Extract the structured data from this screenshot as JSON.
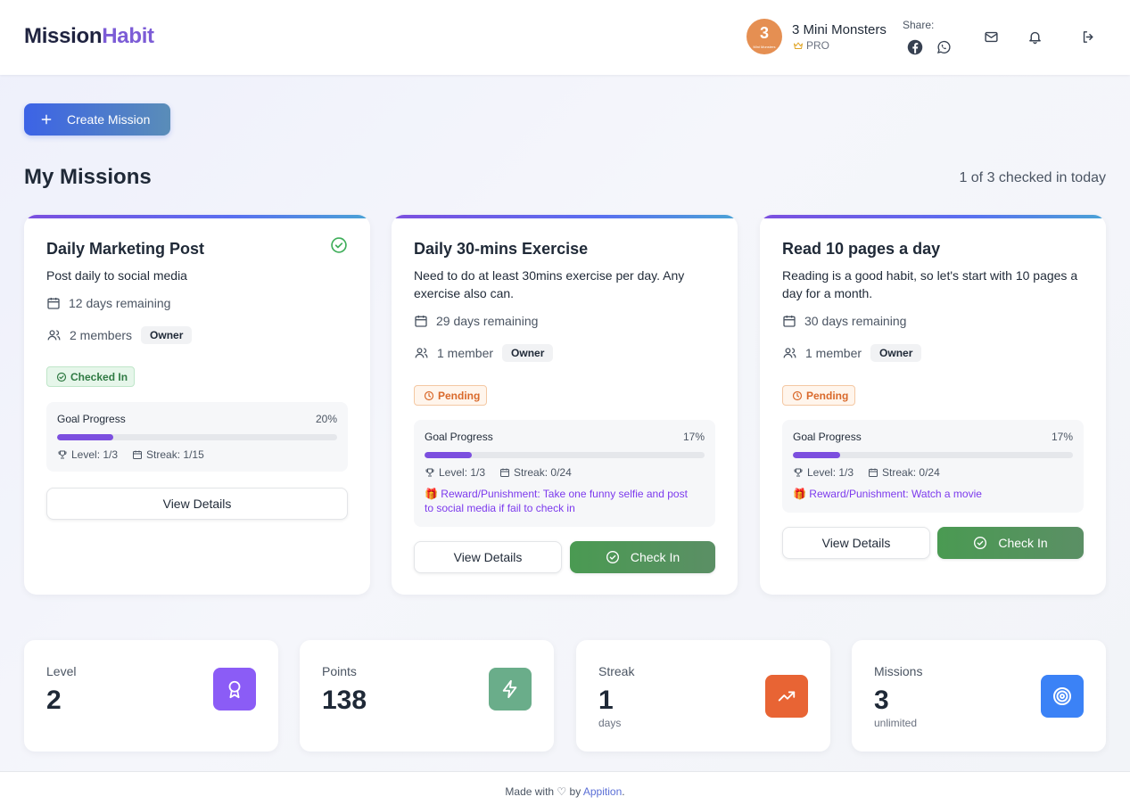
{
  "app": {
    "logo_part1": "Mission",
    "logo_part2": "Habit"
  },
  "header": {
    "team_avatar_number": "3",
    "team_avatar_caption": "Mini Monsters",
    "team_name": "3 Mini Monsters",
    "plan": "PRO",
    "share_label": "Share:"
  },
  "toolbar": {
    "create_label": "Create Mission"
  },
  "page": {
    "title": "My Missions",
    "checked_summary": "1 of 3 checked in today"
  },
  "missions": [
    {
      "title": "Daily Marketing Post",
      "description": "Post daily to social media",
      "days_remaining": "12 days remaining",
      "members": "2 members",
      "role": "Owner",
      "status": "Checked In",
      "progress_label": "Goal Progress",
      "progress_percent_text": "20%",
      "progress_value": 0.2,
      "level": "Level: 1/3",
      "streak": "Streak: 1/15",
      "reward": "",
      "details_label": "View Details",
      "checkin_label": ""
    },
    {
      "title": "Daily 30-mins Exercise",
      "description": "Need to do at least 30mins exercise per day. Any exercise also can.",
      "days_remaining": "29 days remaining",
      "members": "1 member",
      "role": "Owner",
      "status": "Pending",
      "progress_label": "Goal Progress",
      "progress_percent_text": "17%",
      "progress_value": 0.17,
      "level": "Level: 1/3",
      "streak": "Streak: 0/24",
      "reward": "Reward/Punishment: Take one funny selfie and post to social media if fail to check in",
      "details_label": "View Details",
      "checkin_label": "Check In"
    },
    {
      "title": "Read 10 pages a day",
      "description": "Reading is a good habit, so let's start with 10 pages a day for a month.",
      "days_remaining": "30 days remaining",
      "members": "1 member",
      "role": "Owner",
      "status": "Pending",
      "progress_label": "Goal Progress",
      "progress_percent_text": "17%",
      "progress_value": 0.17,
      "level": "Level: 1/3",
      "streak": "Streak: 0/24",
      "reward": "Reward/Punishment: Watch a movie",
      "details_label": "View Details",
      "checkin_label": "Check In"
    }
  ],
  "stats": [
    {
      "label": "Level",
      "value": "2",
      "sub": "",
      "icon": "award-icon",
      "color": "#8b5cf6"
    },
    {
      "label": "Points",
      "value": "138",
      "sub": "",
      "icon": "lightning-icon",
      "color": "#6aad8a"
    },
    {
      "label": "Streak",
      "value": "1",
      "sub": "days",
      "icon": "trending-up-icon",
      "color": "#e86434"
    },
    {
      "label": "Missions",
      "value": "3",
      "sub": "unlimited",
      "icon": "target-icon",
      "color": "#3b82f6"
    }
  ],
  "footer": {
    "prefix": "Made with ♡ by ",
    "link": "Appition",
    "suffix": "."
  }
}
